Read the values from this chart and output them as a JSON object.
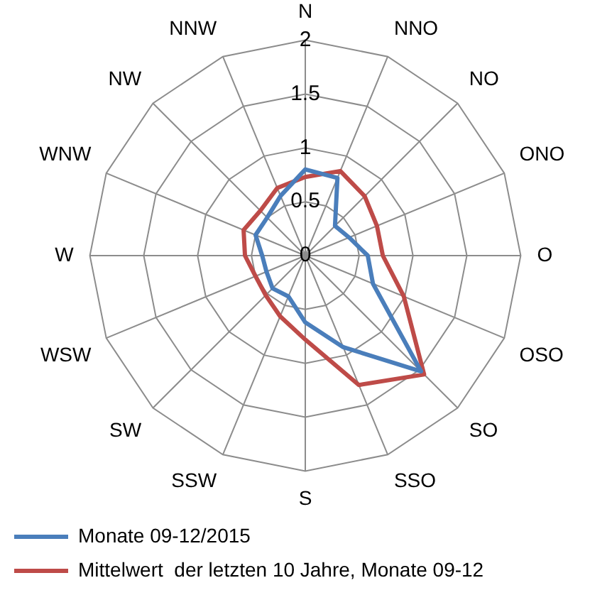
{
  "chart_data": {
    "type": "radar",
    "categories": [
      "N",
      "NNO",
      "NO",
      "ONO",
      "O",
      "OSO",
      "SO",
      "SSO",
      "S",
      "SSW",
      "SW",
      "WSW",
      "W",
      "WNW",
      "NW",
      "NNW"
    ],
    "series": [
      {
        "name": "Monate 09-12/2015",
        "color": "#4a7ebb",
        "values": [
          0.8,
          0.78,
          0.39,
          0.44,
          0.58,
          0.68,
          1.52,
          0.92,
          0.62,
          0.41,
          0.43,
          0.39,
          0.4,
          0.5,
          0.5,
          0.6
        ]
      },
      {
        "name": "Mittelwert  der letzten 10 Jahre, Monate 09-12",
        "color": "#be4b48",
        "values": [
          0.73,
          0.85,
          0.78,
          0.72,
          0.72,
          0.99,
          1.56,
          1.3,
          0.78,
          0.61,
          0.52,
          0.5,
          0.56,
          0.62,
          0.59,
          0.68
        ]
      }
    ],
    "ylim": [
      0,
      2
    ],
    "yticks": [
      0,
      0.5,
      1,
      1.5,
      2
    ],
    "grid": true,
    "legend": "bottom left",
    "marker": "none"
  }
}
